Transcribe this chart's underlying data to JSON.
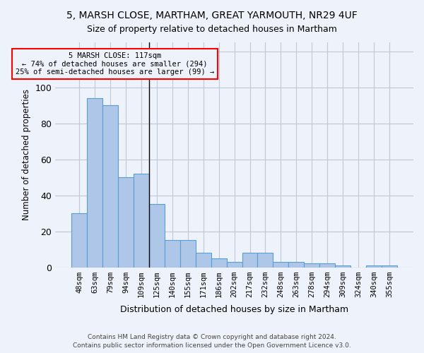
{
  "title1": "5, MARSH CLOSE, MARTHAM, GREAT YARMOUTH, NR29 4UF",
  "title2": "Size of property relative to detached houses in Martham",
  "xlabel": "Distribution of detached houses by size in Martham",
  "ylabel": "Number of detached properties",
  "bar_values": [
    30,
    94,
    90,
    50,
    52,
    35,
    15,
    15,
    8,
    5,
    3,
    8,
    8,
    3,
    3,
    2,
    2,
    1,
    0,
    1,
    1
  ],
  "categories": [
    "48sqm",
    "63sqm",
    "79sqm",
    "94sqm",
    "109sqm",
    "125sqm",
    "140sqm",
    "155sqm",
    "171sqm",
    "186sqm",
    "202sqm",
    "217sqm",
    "232sqm",
    "248sqm",
    "263sqm",
    "278sqm",
    "294sqm",
    "309sqm",
    "324sqm",
    "340sqm",
    "355sqm"
  ],
  "bar_color": "#aec6e8",
  "bar_edge_color": "#5a9fd4",
  "bg_color": "#eef2fa",
  "annotation_line1": "5 MARSH CLOSE: 117sqm",
  "annotation_line2": "← 74% of detached houses are smaller (294)",
  "annotation_line3": "25% of semi-detached houses are larger (99) →",
  "vline_bin_index": 4,
  "ylim": [
    0,
    125
  ],
  "yticks": [
    0,
    20,
    40,
    60,
    80,
    100,
    120
  ],
  "footnote1": "Contains HM Land Registry data © Crown copyright and database right 2024.",
  "footnote2": "Contains public sector information licensed under the Open Government Licence v3.0."
}
